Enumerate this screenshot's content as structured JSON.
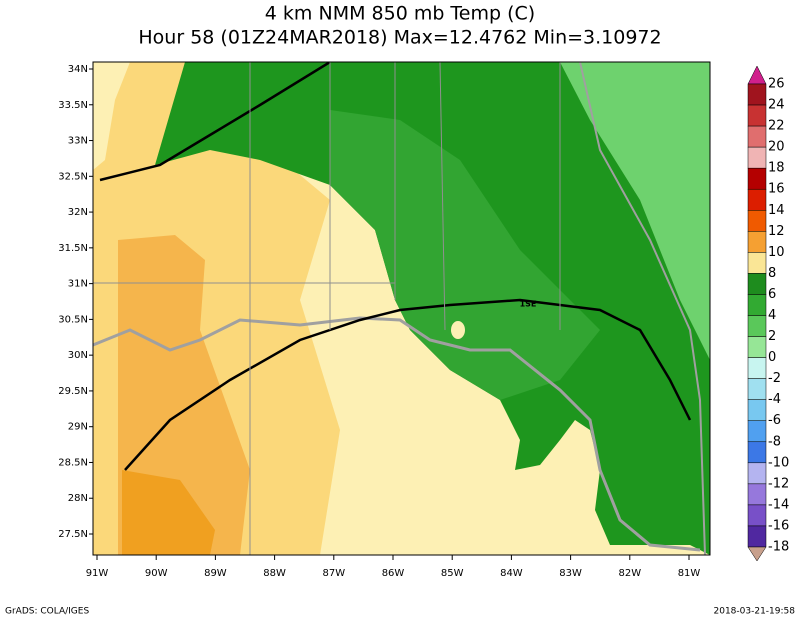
{
  "header": {
    "title": "4 km NMM 850 mb Temp (C)",
    "subtitle": "Hour 58 (01Z24MAR2018) Max=12.4762 Min=3.10972"
  },
  "map": {
    "lat_labels": [
      "34N",
      "33.5N",
      "33N",
      "32.5N",
      "32N",
      "31.5N",
      "31N",
      "30.5N",
      "30N",
      "29.5N",
      "29N",
      "28.5N",
      "28N",
      "27.5N"
    ],
    "lon_labels": [
      "91W",
      "90W",
      "89W",
      "88W",
      "87W",
      "86W",
      "85W",
      "84W",
      "83W",
      "82W",
      "81W"
    ],
    "annotation": "1SE"
  },
  "colorbar": {
    "labels": [
      26,
      24,
      22,
      20,
      18,
      16,
      14,
      12,
      10,
      8,
      6,
      4,
      2,
      0,
      -2,
      -4,
      -6,
      -8,
      -10,
      -12,
      -14,
      -16,
      -18
    ],
    "colors": [
      "#d0208c",
      "#a0141e",
      "#c83232",
      "#e06e6e",
      "#f0b4b4",
      "#b40000",
      "#dc1e00",
      "#f05a00",
      "#f5a032",
      "#fae696",
      "#1e8c1e",
      "#32aa32",
      "#5ac85a",
      "#96e696",
      "#c8f5f0",
      "#a0e0f0",
      "#78c8f0",
      "#50a0f0",
      "#3c78e6",
      "#b4b4f0",
      "#9678dc",
      "#7850c8",
      "#5028a0",
      "#c8a08c"
    ]
  },
  "footer": {
    "left": "GrADS: COLA/IGES",
    "right": "2018-03-21-19:58"
  }
}
